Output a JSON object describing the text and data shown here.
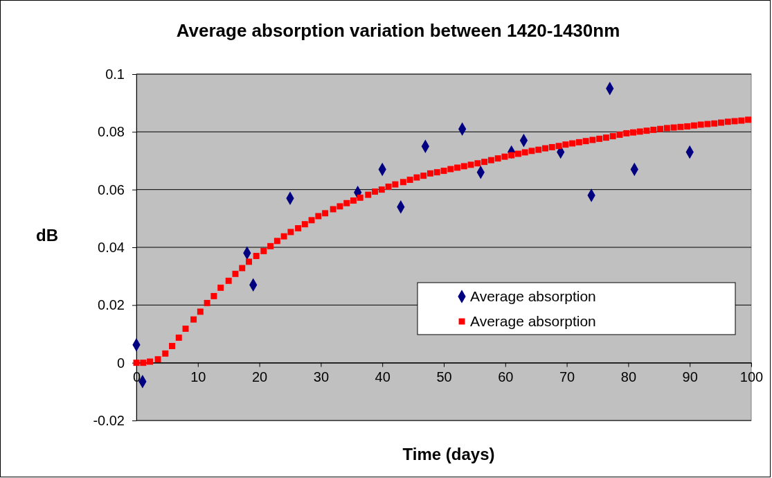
{
  "chart_data": {
    "type": "scatter",
    "title": "Average absorption variation between 1420-1430nm",
    "xlabel": "Time (days)",
    "ylabel": "dB",
    "xlim": [
      0,
      100
    ],
    "xticks": [
      0,
      10,
      20,
      30,
      40,
      50,
      60,
      70,
      80,
      90,
      100
    ],
    "ylim": [
      -0.02,
      0.1
    ],
    "yticks": [
      -0.02,
      0,
      0.02,
      0.04,
      0.06,
      0.08,
      0.1
    ],
    "grid": "y",
    "legend": "bottom right",
    "series": [
      {
        "name": "Average absorption",
        "color": "#000080",
        "marker": "diamond",
        "x": [
          0,
          1,
          18,
          19,
          25,
          36,
          40,
          43,
          47,
          53,
          56,
          61,
          63,
          69,
          74,
          77,
          81,
          90
        ],
        "values": [
          0.0062,
          -0.0065,
          0.038,
          0.027,
          0.057,
          0.059,
          0.067,
          0.054,
          0.075,
          0.081,
          0.066,
          0.073,
          0.077,
          0.073,
          0.058,
          0.095,
          0.067,
          0.073
        ]
      },
      {
        "name": "Average absorption",
        "color": "#ff0000",
        "marker": "square",
        "x": [
          0,
          1.1,
          2.2,
          3.5,
          4.7,
          5.8,
          6.9,
          8.0,
          9.3,
          10.4,
          11.5,
          12.6,
          13.7,
          15.0,
          16.1,
          17.2,
          18.3,
          19.5,
          20.7,
          21.8,
          22.9,
          24.0,
          25.1,
          26.3,
          27.4,
          28.5,
          29.6,
          30.7,
          32.0,
          33.1,
          34.2,
          35.3,
          36.4,
          37.7,
          38.8,
          39.9,
          41.0,
          42.1,
          43.4,
          44.5,
          45.6,
          46.7,
          47.8,
          48.9,
          50.0,
          51.1,
          52.2,
          53.3,
          54.4,
          55.5,
          56.6,
          57.7,
          58.8,
          59.9,
          61.0,
          62.1,
          63.2,
          64.3,
          65.4,
          66.5,
          67.6,
          68.7,
          69.8,
          70.9,
          72.0,
          73.1,
          74.2,
          75.3,
          76.4,
          77.5,
          78.6,
          79.7,
          80.8,
          81.9,
          83.0,
          84.1,
          85.2,
          86.3,
          87.4,
          88.5,
          89.6,
          90.7,
          91.8,
          92.9,
          94.0,
          95.1,
          96.2,
          97.3,
          98.4,
          99.5
        ],
        "values": [
          0,
          0,
          0.0004,
          0.0012,
          0.0032,
          0.0058,
          0.0087,
          0.0118,
          0.015,
          0.0177,
          0.0207,
          0.0231,
          0.026,
          0.0284,
          0.0308,
          0.0328,
          0.035,
          0.037,
          0.0387,
          0.0404,
          0.0422,
          0.0438,
          0.0453,
          0.0466,
          0.048,
          0.0494,
          0.0508,
          0.0518,
          0.0532,
          0.0542,
          0.0553,
          0.0562,
          0.0572,
          0.0582,
          0.0593,
          0.06,
          0.061,
          0.0618,
          0.0626,
          0.0634,
          0.0642,
          0.0648,
          0.0656,
          0.066,
          0.0665,
          0.0671,
          0.0676,
          0.0681,
          0.0686,
          0.0691,
          0.0696,
          0.0702,
          0.0708,
          0.0714,
          0.0719,
          0.0724,
          0.0729,
          0.0734,
          0.0738,
          0.0743,
          0.0747,
          0.0751,
          0.0756,
          0.076,
          0.0764,
          0.0768,
          0.0772,
          0.0776,
          0.078,
          0.0785,
          0.079,
          0.0795,
          0.0798,
          0.0801,
          0.0804,
          0.0807,
          0.081,
          0.0813,
          0.0815,
          0.0817,
          0.0819,
          0.0822,
          0.0825,
          0.0827,
          0.0829,
          0.0832,
          0.0835,
          0.0837,
          0.0839,
          0.0842
        ]
      }
    ]
  }
}
